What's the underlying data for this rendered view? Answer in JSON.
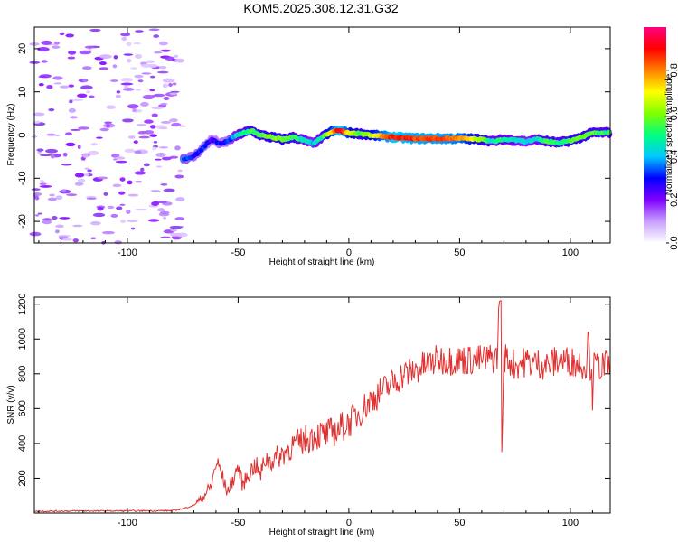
{
  "chart_data": [
    {
      "type": "heatmap",
      "title": "KOM5.2025.308.12.31.G32",
      "xlabel": "Height of straight line (km)",
      "ylabel": "Frequency (Hz)",
      "xlim": [
        -142,
        118
      ],
      "ylim": [
        -25,
        25
      ],
      "xticks": [
        -100,
        -50,
        0,
        50,
        100
      ],
      "yticks": [
        -20,
        -10,
        0,
        10,
        20
      ],
      "colorbar": {
        "label": "Normalized spectral amplitude",
        "range": [
          0,
          1
        ],
        "ticks": [
          0.0,
          0.2,
          0.4,
          0.6,
          0.8
        ],
        "tick_labels": [
          "0.0",
          "0.2",
          "0.4",
          "0.6",
          "0.8"
        ],
        "colors": [
          "#ffffff",
          "#c8a0ff",
          "#8000ff",
          "#0000ff",
          "#00c8ff",
          "#00ff80",
          "#80ff00",
          "#ffff00",
          "#ff8000",
          "#ff0000",
          "#ff0080"
        ]
      },
      "ridge": {
        "x": [
          -75,
          -70,
          -66,
          -62,
          -58,
          -55,
          -52,
          -48,
          -44,
          -40,
          -35,
          -30,
          -25,
          -20,
          -16,
          -12,
          -8,
          -4,
          0,
          5,
          10,
          20,
          30,
          40,
          50,
          60,
          65,
          70,
          75,
          80,
          85,
          90,
          95,
          100,
          105,
          110,
          118
        ],
        "frequency": [
          -5.5,
          -5,
          -3,
          -1,
          -2,
          -1.5,
          -0.5,
          0.5,
          1,
          0,
          -0.5,
          -1,
          -0.5,
          -1.2,
          -2,
          -0.5,
          0.8,
          1,
          0.5,
          0.3,
          0,
          -0.5,
          -0.8,
          -0.8,
          -0.8,
          -1,
          -1.5,
          -1,
          -1.2,
          -1.5,
          -1,
          -1.5,
          -1.8,
          -1.3,
          -0.5,
          0.5,
          0.6
        ],
        "amplitude": [
          0.35,
          0.3,
          0.32,
          0.25,
          0.3,
          0.28,
          0.4,
          0.5,
          0.55,
          0.55,
          0.6,
          0.6,
          0.55,
          0.45,
          0.4,
          0.5,
          0.7,
          0.95,
          0.7,
          0.55,
          0.65,
          0.9,
          0.85,
          0.85,
          0.8,
          0.6,
          0.45,
          0.5,
          0.45,
          0.4,
          0.45,
          0.55,
          0.5,
          0.55,
          0.6,
          0.55,
          0.5
        ]
      },
      "noise_region": {
        "x_range": [
          -142,
          -75
        ],
        "frequency_range": [
          -25,
          25
        ],
        "amplitude_range": [
          0.05,
          0.2
        ]
      }
    },
    {
      "type": "line",
      "xlabel": "Height of straight line (km)",
      "ylabel": "SNR (v/v)",
      "xlim": [
        -142,
        118
      ],
      "ylim": [
        0,
        1240
      ],
      "xticks": [
        -100,
        -50,
        0,
        50,
        100
      ],
      "yticks": [
        200,
        400,
        600,
        800,
        1000,
        1200
      ],
      "series": [
        {
          "name": "SNR",
          "color": "#e03030",
          "x": [
            -142,
            -120,
            -100,
            -80,
            -75,
            -70,
            -66,
            -62,
            -60,
            -58,
            -55,
            -52,
            -50,
            -48,
            -45,
            -42,
            -40,
            -38,
            -35,
            -30,
            -25,
            -20,
            -15,
            -10,
            -5,
            0,
            5,
            10,
            15,
            20,
            25,
            30,
            35,
            40,
            50,
            60,
            65,
            67,
            68,
            69,
            70,
            72,
            75,
            80,
            85,
            90,
            95,
            100,
            105,
            110,
            118
          ],
          "y": [
            10,
            12,
            12,
            14,
            25,
            45,
            90,
            160,
            290,
            250,
            120,
            200,
            270,
            160,
            230,
            280,
            210,
            310,
            300,
            340,
            390,
            420,
            450,
            450,
            480,
            520,
            580,
            650,
            700,
            750,
            800,
            820,
            850,
            880,
            880,
            880,
            890,
            900,
            1220,
            350,
            900,
            880,
            850,
            870,
            860,
            850,
            880,
            870,
            860,
            840,
            850
          ]
        }
      ],
      "spikes": [
        {
          "x": 68.5,
          "y": 1220
        },
        {
          "x": 69,
          "y": 350
        },
        {
          "x": 108,
          "y": 1040
        },
        {
          "x": 110,
          "y": 590
        }
      ]
    }
  ]
}
